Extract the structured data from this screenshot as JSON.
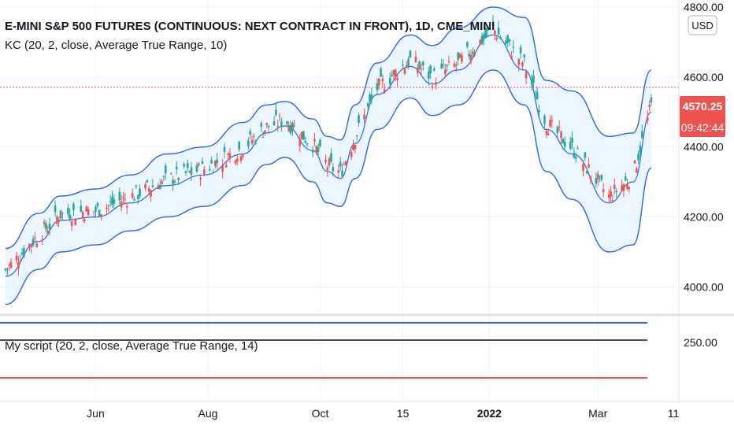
{
  "title": "E-MINI S&P 500 FUTURES (CONTINUOUS: NEXT CONTRACT IN FRONT), 1D, CME_MINI",
  "indicator_label": "KC (20, 2, close, Average True Range, 10)",
  "script_label": "My script (20, 2, close, Average True Range, 14)",
  "currency_button": "USD",
  "price_badge": {
    "price": "4570.25",
    "countdown": "09:42:44"
  },
  "colors": {
    "up": "#26a69a",
    "down": "#ef5350",
    "channel_line": "#2962ff",
    "channel_fill": "#e3f2fd",
    "badge": "#ef5350",
    "script_top": "#2962ff",
    "script_mid": "#131722",
    "script_bottom": "#ef5350"
  },
  "chart_data": [
    {
      "type": "line",
      "title": "E-MINI S&P 500 FUTURES (CONTINUOUS: NEXT CONTRACT IN FRONT), 1D, CME_MINI",
      "x_tick_labels": [
        "Jun",
        "Aug",
        "Oct",
        "15",
        "2022",
        "Mar",
        "11"
      ],
      "y_tick_labels": [
        "4000.00",
        "4200.00",
        "4400.00",
        "4600.00",
        "4800.00"
      ],
      "ylim": [
        3920,
        4820
      ],
      "last_price": 4570.25,
      "series": [
        {
          "name": "KC (20, 2, close, Average True Range, 10)",
          "x": [
            "2021-04-13",
            "2021-05-01",
            "2021-05-13",
            "2021-06-01",
            "2021-06-20",
            "2021-07-10",
            "2021-07-30",
            "2021-08-20",
            "2021-09-02",
            "2021-09-12",
            "2021-09-27",
            "2021-10-05",
            "2021-10-12",
            "2021-10-20",
            "2021-11-01",
            "2021-11-19",
            "2021-12-01",
            "2021-12-15",
            "2022-01-03",
            "2022-01-20",
            "2022-02-01",
            "2022-02-15",
            "2022-03-07",
            "2022-03-20",
            "2022-03-30"
          ],
          "values": [
            4030,
            4130,
            4190,
            4200,
            4240,
            4290,
            4320,
            4380,
            4440,
            4460,
            4390,
            4330,
            4310,
            4410,
            4550,
            4630,
            4580,
            4620,
            4720,
            4620,
            4450,
            4380,
            4240,
            4300,
            4500
          ],
          "upper": [
            4110,
            4210,
            4260,
            4280,
            4320,
            4380,
            4400,
            4470,
            4520,
            4530,
            4480,
            4430,
            4420,
            4520,
            4640,
            4720,
            4690,
            4740,
            4800,
            4770,
            4590,
            4560,
            4430,
            4440,
            4620
          ],
          "lower": [
            3950,
            4050,
            4100,
            4120,
            4160,
            4200,
            4230,
            4290,
            4350,
            4370,
            4300,
            4240,
            4230,
            4310,
            4450,
            4540,
            4490,
            4520,
            4620,
            4520,
            4330,
            4250,
            4100,
            4120,
            4340
          ]
        },
        {
          "name": "My script (20, 2, close, Average True Range, 14)",
          "y_tick_labels": [
            "250.00"
          ],
          "values": [
            270,
            250,
            225
          ]
        }
      ]
    }
  ]
}
